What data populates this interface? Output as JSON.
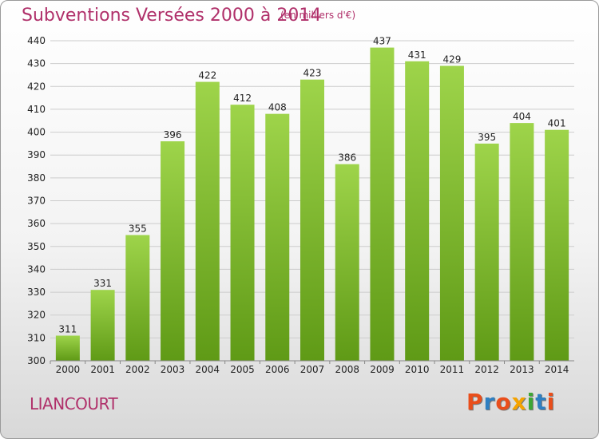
{
  "header": {
    "title": "Subventions Versées 2000 à 2014",
    "subtitle": "(en milliers d'€)"
  },
  "footer": {
    "commune": "LIANCOURT",
    "logo": "Proxiti"
  },
  "colors": {
    "title": "#b0306a",
    "bar_top": "#9ed44a",
    "bar_bottom": "#5f9a16",
    "grid": "#cccccc",
    "logo_letters": [
      "#e94e1b",
      "#2f7fc1",
      "#e94e1b",
      "#f5a300",
      "#3da635",
      "#2f7fc1",
      "#e94e1b"
    ]
  },
  "chart_data": {
    "type": "bar",
    "title": "Subventions Versées 2000 à 2014",
    "subtitle": "(en milliers d'€)",
    "categories": [
      "2000",
      "2001",
      "2002",
      "2003",
      "2004",
      "2005",
      "2006",
      "2007",
      "2008",
      "2009",
      "2010",
      "2011",
      "2012",
      "2013",
      "2014"
    ],
    "values": [
      311,
      331,
      355,
      396,
      422,
      412,
      408,
      423,
      386,
      437,
      431,
      429,
      395,
      404,
      401
    ],
    "ylim": [
      300,
      440
    ],
    "yticks": [
      300,
      310,
      320,
      330,
      340,
      350,
      360,
      370,
      380,
      390,
      400,
      410,
      420,
      430,
      440
    ],
    "grid": true,
    "legend": false
  }
}
